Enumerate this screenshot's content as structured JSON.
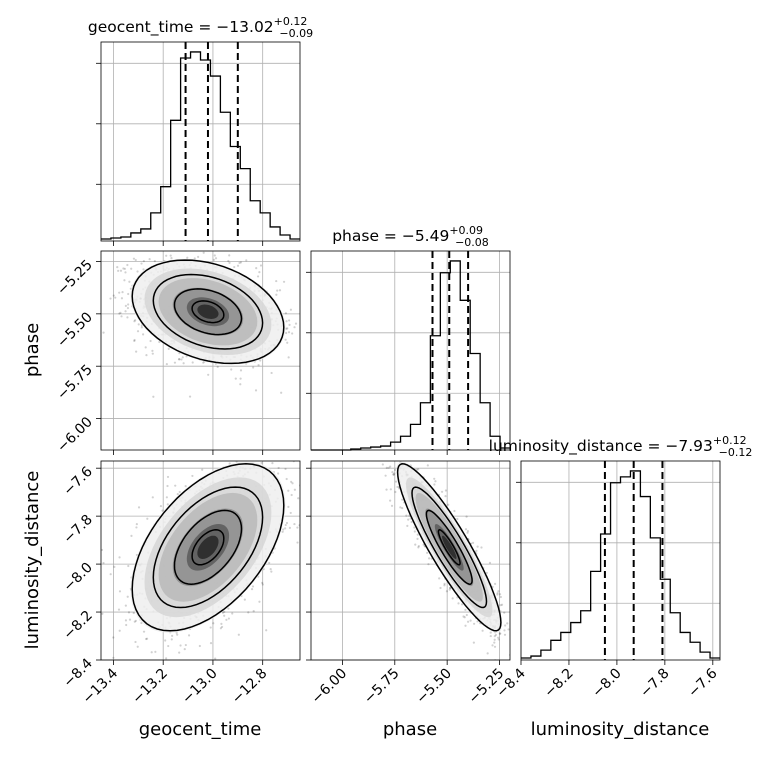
{
  "chart_data": {
    "type": "corner",
    "parameters": [
      "geocent_time",
      "phase",
      "luminosity_distance"
    ],
    "axis_labels": [
      "geocent_time",
      "phase",
      "luminosity_distance"
    ],
    "ranges": [
      [
        -13.45,
        -12.65
      ],
      [
        -6.15,
        -5.2
      ],
      [
        -8.4,
        -7.57
      ]
    ],
    "ticks": [
      [
        "−13.4",
        "−13.2",
        "−13.0",
        "−12.8"
      ],
      [
        "−6.00",
        "−5.75",
        "−5.50",
        "−5.25"
      ],
      [
        "−8.4",
        "−8.2",
        "−8.0",
        "−7.8",
        "−7.6"
      ]
    ],
    "tick_values": [
      [
        -13.4,
        -13.2,
        -13.0,
        -12.8
      ],
      [
        -6.0,
        -5.75,
        -5.5,
        -5.25
      ],
      [
        -8.4,
        -8.2,
        -8.0,
        -7.8,
        -7.6
      ]
    ],
    "titles": [
      {
        "text": "geocent_time = −13.02",
        "sup": "+0.12",
        "sub": "−0.09"
      },
      {
        "text": "phase = −5.49",
        "sup": "+0.09",
        "sub": "−0.08"
      },
      {
        "text": "luminosity_distance = −7.93",
        "sup": "+0.12",
        "sub": "−0.12"
      }
    ],
    "medians": [
      -13.02,
      -5.49,
      -7.93
    ],
    "quantiles": [
      [
        -13.11,
        -12.9
      ],
      [
        -5.57,
        -5.4
      ],
      [
        -8.05,
        -7.81
      ]
    ],
    "histograms": [
      {
        "edges": [
          -13.45,
          -13.41,
          -13.37,
          -13.33,
          -13.29,
          -13.25,
          -13.21,
          -13.17,
          -13.13,
          -13.09,
          -13.05,
          -13.01,
          -12.97,
          -12.93,
          -12.89,
          -12.85,
          -12.81,
          -12.77,
          -12.73,
          -12.69,
          -12.65
        ],
        "counts": [
          0.01,
          0.015,
          0.02,
          0.04,
          0.06,
          0.14,
          0.27,
          0.6,
          0.91,
          0.94,
          0.9,
          0.82,
          0.64,
          0.47,
          0.36,
          0.2,
          0.14,
          0.07,
          0.03,
          0.01
        ]
      },
      {
        "edges": [
          -6.15,
          -6.1025,
          -6.055,
          -6.0075,
          -5.96,
          -5.9125,
          -5.865,
          -5.8175,
          -5.77,
          -5.7225,
          -5.675,
          -5.6275,
          -5.58,
          -5.5325,
          -5.485,
          -5.4375,
          -5.39,
          -5.3425,
          -5.295,
          -5.2475,
          -5.2
        ],
        "counts": [
          0.0,
          0.0,
          0.0,
          0.0,
          0.005,
          0.01,
          0.015,
          0.02,
          0.04,
          0.07,
          0.13,
          0.24,
          0.58,
          0.9,
          0.96,
          0.76,
          0.49,
          0.24,
          0.07,
          0.01
        ]
      },
      {
        "edges": [
          -8.4,
          -8.3585,
          -8.317,
          -8.2755,
          -8.234,
          -8.1925,
          -8.151,
          -8.1095,
          -8.068,
          -8.0265,
          -7.985,
          -7.9435,
          -7.902,
          -7.8605,
          -7.819,
          -7.7775,
          -7.736,
          -7.6945,
          -7.653,
          -7.6115,
          -7.57
        ],
        "counts": [
          0.01,
          0.02,
          0.05,
          0.1,
          0.14,
          0.19,
          0.25,
          0.45,
          0.64,
          0.9,
          0.93,
          0.96,
          0.83,
          0.62,
          0.41,
          0.24,
          0.14,
          0.09,
          0.04,
          0.01
        ]
      }
    ],
    "correlations": {
      "1_0": -0.3,
      "2_0": 0.5,
      "2_1": -0.9
    },
    "grid": true,
    "n_samples_shown": 1600
  }
}
